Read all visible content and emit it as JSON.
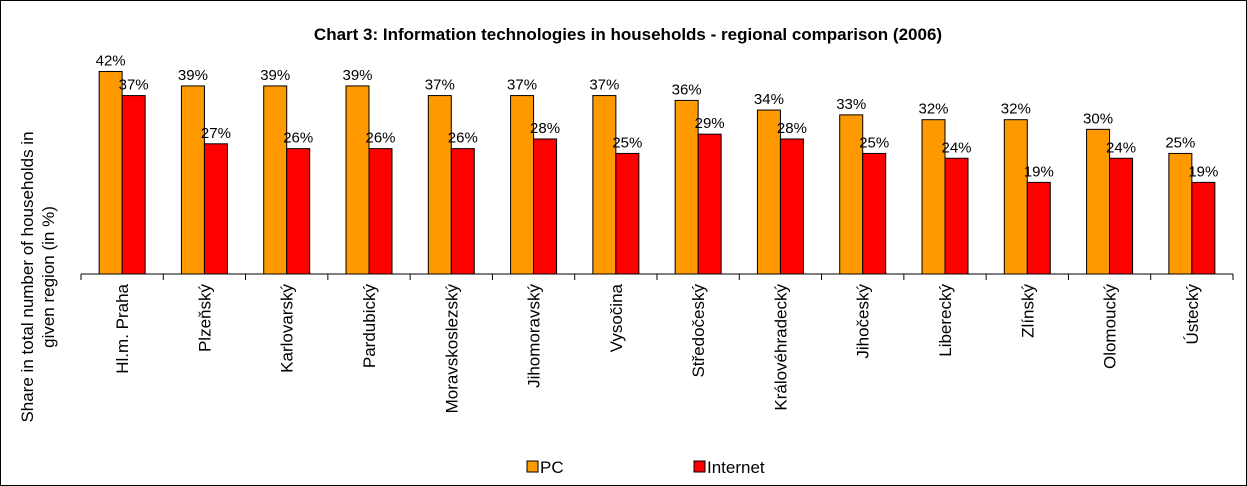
{
  "chart_data": {
    "type": "bar",
    "title": "Chart 3: Information technologies in households - regional comparison (2006)",
    "ylabel_lines": [
      "Share in total number of households in",
      "given region (in %)"
    ],
    "xlabel": "",
    "ylim": [
      0,
      45
    ],
    "grid": false,
    "legend_position": "bottom-center",
    "categories": [
      "Hl.m. Praha",
      "Plzeňský",
      "Karlovarský",
      "Pardubický",
      "Moravskoslezský",
      "Jihomoravský",
      "Vysočina",
      "Středočeský",
      "Královéhradecký",
      "Jihočeský",
      "Liberecký",
      "Zlínský",
      "Olomoucký",
      "Ústecký"
    ],
    "series": [
      {
        "name": "PC",
        "color": "#FF9900",
        "values": [
          42,
          39,
          39,
          39,
          37,
          37,
          37,
          36,
          34,
          33,
          32,
          32,
          30,
          25
        ],
        "labels": [
          "42%",
          "39%",
          "39%",
          "39%",
          "37%",
          "37%",
          "37%",
          "36%",
          "34%",
          "33%",
          "32%",
          "32%",
          "30%",
          "25%"
        ]
      },
      {
        "name": "Internet",
        "color": "#FF0000",
        "values": [
          37,
          27,
          26,
          26,
          26,
          28,
          25,
          29,
          28,
          25,
          24,
          19,
          24,
          19
        ],
        "labels": [
          "37%",
          "27%",
          "26%",
          "26%",
          "26%",
          "28%",
          "25%",
          "29%",
          "28%",
          "25%",
          "24%",
          "19%",
          "24%",
          "19%"
        ]
      }
    ]
  }
}
